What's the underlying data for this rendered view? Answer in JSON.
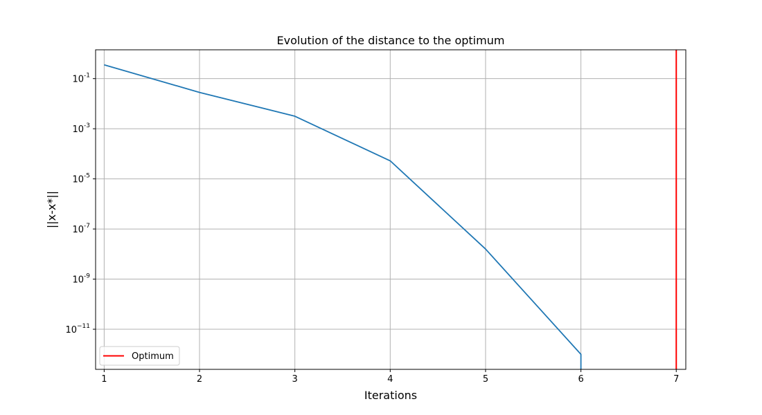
{
  "chart_data": {
    "type": "line",
    "title": "Evolution of the distance to the optimum",
    "xlabel": "Iterations",
    "ylabel": "||x-x*||",
    "yscale": "log",
    "xlim": [
      0.91,
      7.1
    ],
    "ylim_exp": [
      -12.6,
      0.15
    ],
    "grid": true,
    "legend_placement": "lower-left",
    "x_ticks": [
      1,
      2,
      3,
      4,
      5,
      6,
      7
    ],
    "y_ticks": [
      {
        "base": "10",
        "exp": "-1",
        "value_exp": -1
      },
      {
        "base": "10",
        "exp": "-3",
        "value_exp": -3
      },
      {
        "base": "10",
        "exp": "-5",
        "value_exp": -5
      },
      {
        "base": "10",
        "exp": "-7",
        "value_exp": -7
      },
      {
        "base": "10",
        "exp": "-9",
        "value_exp": -9
      },
      {
        "base": "10",
        "exp": "−11",
        "value_exp": -11
      }
    ],
    "series": [
      {
        "color": "#1f77b4",
        "x": [
          1,
          2,
          3,
          4,
          5,
          6,
          6
        ],
        "y_exp": [
          -0.45,
          -1.55,
          -2.5,
          -4.28,
          -7.8,
          -12.0,
          -12.6
        ]
      }
    ],
    "vlines": [
      {
        "name": "Optimum",
        "x": 7,
        "color": "#ff0000"
      }
    ]
  }
}
